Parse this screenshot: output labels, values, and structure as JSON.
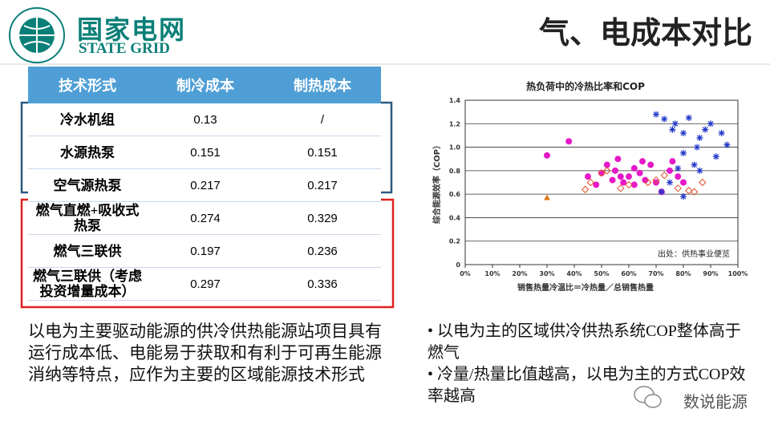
{
  "header": {
    "logo_cn": "国家电网",
    "logo_en": "STATE GRID",
    "title": "气、电成本对比"
  },
  "table": {
    "columns": [
      "技术形式",
      "制冷成本",
      "制热成本"
    ],
    "rows": [
      [
        "冷水机组",
        0.13,
        "/"
      ],
      [
        "水源热泵",
        0.151,
        0.151
      ],
      [
        "空气源热泵",
        0.217,
        0.217
      ],
      [
        "燃气直燃+吸收式热泵",
        0.274,
        0.329
      ],
      [
        "燃气三联供",
        0.197,
        0.236
      ],
      [
        "燃气三联供（考虑投资增量成本）",
        0.297,
        0.336
      ]
    ]
  },
  "chart_data": {
    "type": "scatter",
    "title": "热负荷中的冷热比率和COP",
    "x_label": "销售热量冷温比＝冷热量／总销售热量",
    "y_label": "综合能源效率（COP）",
    "note": "出处：供热事业便览",
    "xlim": [
      0,
      100
    ],
    "ylim": [
      0,
      1.4
    ],
    "xticks": [
      {
        "value": 0,
        "label": "0%"
      },
      {
        "value": 10,
        "label": "10%"
      },
      {
        "value": 20,
        "label": "20%"
      },
      {
        "value": 30,
        "label": "30%"
      },
      {
        "value": 40,
        "label": "40%"
      },
      {
        "value": 50,
        "label": "50%"
      },
      {
        "value": 60,
        "label": "60%"
      },
      {
        "value": 70,
        "label": "70%"
      },
      {
        "value": 80,
        "label": "80%"
      },
      {
        "value": 90,
        "label": "90%"
      },
      {
        "value": 100,
        "label": "100%"
      }
    ],
    "yticks": [
      0,
      0.2,
      0.4,
      0.6,
      0.8,
      {
        "value": 1,
        "label": "1.0"
      },
      1.2,
      1.4
    ],
    "grid": true,
    "series": [
      {
        "color": "#e619c8",
        "marker": "circle",
        "x": [
          30,
          38,
          45,
          48,
          50,
          52,
          54,
          55,
          57,
          58,
          60,
          62,
          64,
          65,
          66,
          68,
          70,
          72,
          75,
          76,
          78,
          80,
          62,
          56
        ],
        "values": [
          0.93,
          1.05,
          0.75,
          0.68,
          0.78,
          0.85,
          0.72,
          0.8,
          0.75,
          0.7,
          0.75,
          0.68,
          0.78,
          0.88,
          0.72,
          0.85,
          0.7,
          0.62,
          0.8,
          0.88,
          0.75,
          0.7,
          0.82,
          0.9
        ]
      },
      {
        "color": "#e0502a",
        "marker": "diamond",
        "x": [
          44,
          46,
          50,
          52,
          57,
          60,
          67,
          73,
          78,
          82,
          84,
          87,
          70
        ],
        "values": [
          0.64,
          0.7,
          0.78,
          0.8,
          0.65,
          0.68,
          0.7,
          0.76,
          0.65,
          0.63,
          0.62,
          0.7,
          0.72
        ]
      },
      {
        "color": "#2238c8",
        "marker": "star",
        "x": [
          70,
          73,
          76,
          77,
          80,
          82,
          85,
          86,
          88,
          90,
          92,
          94,
          96,
          80,
          84,
          86,
          80,
          78,
          75,
          72
        ],
        "values": [
          1.28,
          1.24,
          1.15,
          1.2,
          1.12,
          1.25,
          1.0,
          1.08,
          1.15,
          1.2,
          0.92,
          1.12,
          1.02,
          0.95,
          0.85,
          0.8,
          0.58,
          0.82,
          0.7,
          0.62
        ]
      },
      {
        "color": "#e07a1a",
        "marker": "triangle",
        "x": [
          30
        ],
        "values": [
          0.57
        ]
      }
    ]
  },
  "left_text": "以电为主要驱动能源的供冷供热能源站项目具有运行成本低、电能易于获取和有利于可再生能源消纳等特点，应作为主要的区域能源技术形式",
  "bullets": [
    "以电为主的区域供冷供热系统COP整体高于燃气",
    "冷量/热量比值越高，以电为主的方式COP效率越高"
  ],
  "watermark": "数说能源"
}
